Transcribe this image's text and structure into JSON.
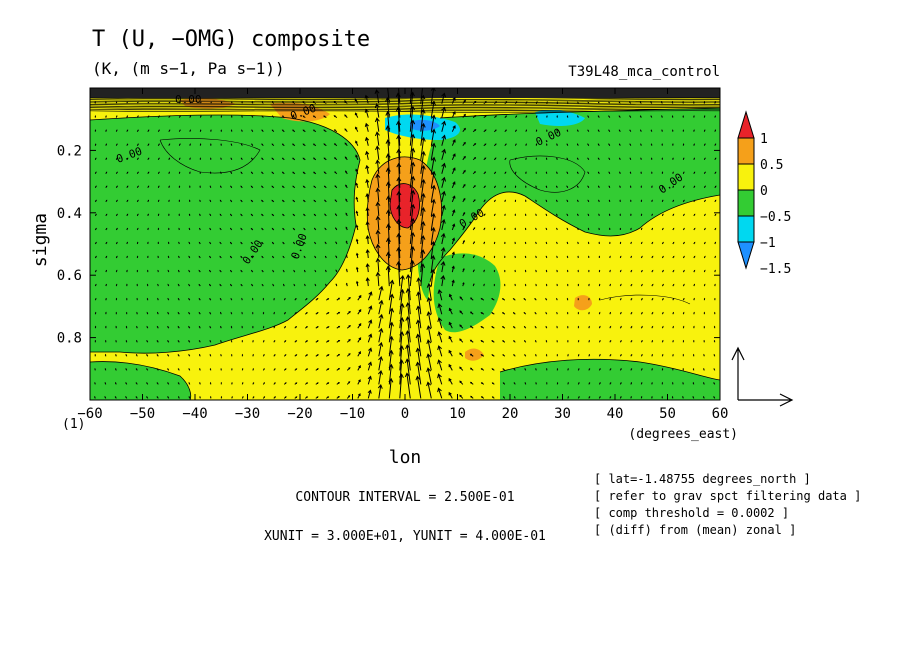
{
  "title": "T (U, −OMG) composite",
  "subtitle": "(K, (m s−1, Pa s−1))",
  "run_label": "T39L48_mca_control",
  "chart_data": {
    "type": "heatmap",
    "xlabel": "lon",
    "x_units": "(degrees_east)",
    "ylabel": "sigma",
    "xlim": [
      -60,
      60
    ],
    "ylim": [
      1.0,
      0.0
    ],
    "x_ticks": [
      "−60",
      "−50",
      "−40",
      "−30",
      "−20",
      "−10",
      "0",
      "10",
      "20",
      "30",
      "40",
      "50",
      "60"
    ],
    "y_ticks": [
      "0.2",
      "0.4",
      "0.6",
      "0.8"
    ],
    "y_bottom_tick": "(1)",
    "colorbar": {
      "labels": [
        "1",
        "0.5",
        "0",
        "−0.5",
        "−1",
        "−1.5"
      ],
      "colors": [
        "#e8232a",
        "#f5a01a",
        "#f8f20d",
        "#33cc33",
        "#00d8f0",
        "#1e90ff"
      ]
    },
    "contour_labels": [
      "0.00",
      "0.00",
      "0.00",
      "0.00",
      "0.00",
      "0.00",
      "0.00",
      "0.00",
      "0.00"
    ],
    "contour_interval_text": "CONTOUR INTERVAL = 2.500E-01",
    "vector_units_text": "XUNIT = 3.000E+01, YUNIT = 4.000E-01",
    "notes": [
      "[ lat=-1.48755 degrees_north ]",
      "[ refer to grav spct filtering data ]",
      "[ comp threshold = 0.0002 ]",
      "[ (diff) from (mean) zonal ]"
    ]
  }
}
